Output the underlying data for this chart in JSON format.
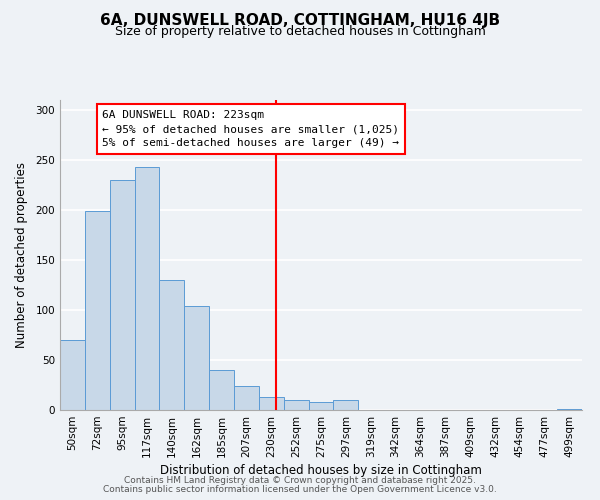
{
  "title": "6A, DUNSWELL ROAD, COTTINGHAM, HU16 4JB",
  "subtitle": "Size of property relative to detached houses in Cottingham",
  "xlabel": "Distribution of detached houses by size in Cottingham",
  "ylabel": "Number of detached properties",
  "bar_labels": [
    "50sqm",
    "72sqm",
    "95sqm",
    "117sqm",
    "140sqm",
    "162sqm",
    "185sqm",
    "207sqm",
    "230sqm",
    "252sqm",
    "275sqm",
    "297sqm",
    "319sqm",
    "342sqm",
    "364sqm",
    "387sqm",
    "409sqm",
    "432sqm",
    "454sqm",
    "477sqm",
    "499sqm"
  ],
  "bar_values": [
    70,
    199,
    230,
    243,
    130,
    104,
    40,
    24,
    13,
    10,
    8,
    10,
    0,
    0,
    0,
    0,
    0,
    0,
    0,
    0,
    1
  ],
  "bar_color": "#c8d8e8",
  "bar_edge_color": "#5b9bd5",
  "vline_color": "red",
  "annotation_title": "6A DUNSWELL ROAD: 223sqm",
  "annotation_line1": "← 95% of detached houses are smaller (1,025)",
  "annotation_line2": "5% of semi-detached houses are larger (49) →",
  "annotation_box_color": "white",
  "annotation_box_edge": "red",
  "ylim": [
    0,
    310
  ],
  "yticks": [
    0,
    50,
    100,
    150,
    200,
    250,
    300
  ],
  "footer1": "Contains HM Land Registry data © Crown copyright and database right 2025.",
  "footer2": "Contains public sector information licensed under the Open Government Licence v3.0.",
  "background_color": "#eef2f6",
  "grid_color": "white",
  "title_fontsize": 11,
  "subtitle_fontsize": 9,
  "axis_label_fontsize": 8.5,
  "tick_fontsize": 7.5,
  "annotation_fontsize": 8,
  "footer_fontsize": 6.5
}
